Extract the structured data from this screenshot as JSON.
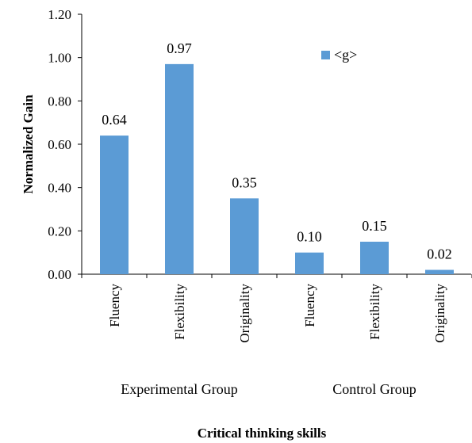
{
  "chart_data": {
    "type": "bar",
    "categories": [
      "Fluency",
      "Flexibility",
      "Originality",
      "Fluency",
      "Flexibility",
      "Originality"
    ],
    "groups": [
      {
        "label": "Experimental Group",
        "start": 0,
        "end": 2
      },
      {
        "label": "Control Group",
        "start": 3,
        "end": 5
      }
    ],
    "series": [
      {
        "name": "<g>",
        "values": [
          0.64,
          0.97,
          0.35,
          0.1,
          0.15,
          0.02
        ],
        "value_labels": [
          "0.64",
          "0.97",
          "0.35",
          "0.10",
          "0.15",
          "0.02"
        ],
        "color": "#5b9bd5"
      }
    ],
    "title": "",
    "xlabel": "Critical thinking skills",
    "ylabel": "Normalized Gain",
    "ylim": [
      0,
      1.2
    ],
    "yticks": [
      0,
      0.2,
      0.4,
      0.6,
      0.8,
      1.0,
      1.2
    ],
    "ytick_labels": [
      "0.00",
      "0.20",
      "0.40",
      "0.60",
      "0.80",
      "1.00",
      "1.20"
    ],
    "grid": false,
    "legend_position": "top-right"
  }
}
